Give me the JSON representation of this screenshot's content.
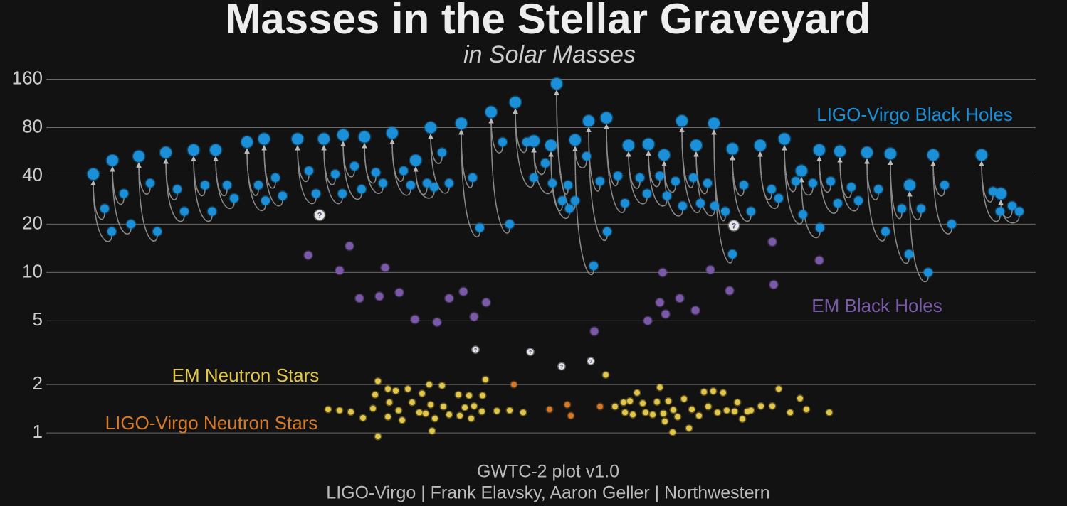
{
  "chart_data": {
    "type": "scatter",
    "title": "Masses in the Stellar Graveyard",
    "subtitle": "in Solar Masses",
    "footer": [
      "GWTC-2 plot v1.0",
      "LIGO-Virgo | Frank Elavsky, Aaron Geller | Northwestern"
    ],
    "log_scale": true,
    "grid": true,
    "xlim": [
      0,
      1400
    ],
    "ylim": [
      0.8,
      180
    ],
    "yticks": [
      1,
      2,
      5,
      10,
      20,
      40,
      80,
      160
    ],
    "series": [
      {
        "name": "LIGO-Virgo Black Holes",
        "color": "#1b8fd8",
        "x": [
          81,
          108,
          145,
          183,
          222,
          253,
          297,
          321,
          368,
          405,
          432,
          462,
          501,
          534,
          555,
          598,
          640,
          674,
          700,
          724,
          732,
          758,
          777,
          802,
          833,
          861,
          883,
          908,
          928,
          953,
          979,
          1018,
          1052,
          1076,
          1101,
          1130,
          1168,
          1201,
          1228,
          1261,
          1329,
          1356
        ],
        "values": [
          41,
          50,
          53,
          56,
          58,
          58,
          65,
          68,
          68,
          68,
          72,
          70,
          74,
          50,
          80,
          85,
          100,
          115,
          66,
          62,
          150,
          67,
          88,
          92,
          62,
          63,
          54,
          88,
          62,
          85,
          59,
          62,
          68,
          43,
          58,
          57,
          56,
          55,
          35,
          54,
          54,
          31
        ],
        "components": [
          [
            25,
            18
          ],
          [
            31,
            20
          ],
          [
            36,
            18
          ],
          [
            33,
            24
          ],
          [
            35,
            24
          ],
          [
            35,
            29
          ],
          [
            35,
            28
          ],
          [
            39,
            30
          ],
          [
            43,
            31
          ],
          [
            41,
            31
          ],
          [
            46,
            33
          ],
          [
            42,
            36
          ],
          [
            43,
            35
          ],
          [
            36,
            34
          ],
          [
            56,
            36
          ],
          [
            39,
            19
          ],
          [
            65,
            20
          ],
          [
            65,
            39
          ],
          [
            48,
            36
          ],
          [
            28,
            25
          ],
          [
            35,
            28
          ],
          [
            53,
            11
          ],
          [
            37,
            18
          ],
          [
            40,
            27
          ],
          [
            39,
            31
          ],
          [
            40,
            30
          ],
          [
            37,
            26
          ],
          [
            39,
            27
          ],
          [
            36,
            26
          ],
          [
            24,
            13
          ],
          [
            35,
            24
          ],
          [
            33,
            29
          ],
          [
            37,
            23
          ],
          [
            36,
            19
          ],
          [
            37,
            27
          ],
          [
            34,
            28
          ],
          [
            33,
            18
          ],
          [
            25,
            13
          ],
          [
            25,
            10
          ],
          [
            35,
            20
          ],
          [
            32,
            24
          ],
          [
            26,
            24
          ]
        ]
      },
      {
        "name": "EM Black Holes",
        "color": "#7a5aa8",
        "x": [
          383,
          427,
          441,
          455,
          483,
          491,
          511,
          533,
          564,
          581,
          601,
          616,
          633,
          785,
          860,
          877,
          885,
          881,
          905,
          927,
          948,
          975,
          1035,
          1037,
          1101
        ],
        "values": [
          12.8,
          10.3,
          14.6,
          6.9,
          7.1,
          10.7,
          7.5,
          5.1,
          4.9,
          6.9,
          7.6,
          5.3,
          6.5,
          4.3,
          5.0,
          6.5,
          5.5,
          10.0,
          6.9,
          5.8,
          10.4,
          7.7,
          15.5,
          8.4,
          11.9
        ]
      },
      {
        "name": "EM Neutron Stars",
        "color": "#e3c74a",
        "x": [
          411,
          427,
          443,
          460,
          474,
          477,
          481,
          481,
          495,
          497,
          495,
          506,
          510,
          515,
          523,
          529,
          539,
          543,
          548,
          553,
          555,
          557,
          561,
          571,
          573,
          581,
          594,
          596,
          603,
          609,
          612,
          616,
          627,
          628,
          632,
          648,
          666,
          685,
          801,
          814,
          826,
          828,
          835,
          839,
          845,
          853,
          857,
          867,
          873,
          877,
          882,
          884,
          889,
          895,
          896,
          902,
          911,
          918,
          922,
          932,
          939,
          945,
          952,
          958,
          966,
          971,
          982,
          986,
          993,
          1000,
          1005,
          1019,
          1035,
          1044,
          1060,
          1074,
          1083,
          1115
        ],
        "values": [
          1.4,
          1.38,
          1.35,
          1.24,
          1.42,
          1.73,
          2.1,
          0.95,
          1.88,
          1.55,
          1.26,
          1.83,
          1.38,
          1.2,
          1.88,
          1.55,
          1.34,
          1.76,
          1.32,
          2.0,
          1.5,
          1.03,
          1.23,
          1.97,
          1.46,
          1.3,
          1.73,
          1.28,
          1.44,
          1.71,
          1.23,
          1.47,
          1.36,
          1.71,
          2.15,
          1.37,
          1.38,
          1.34,
          2.3,
          1.46,
          1.55,
          1.34,
          1.58,
          1.3,
          1.78,
          1.53,
          1.34,
          1.3,
          1.56,
          1.92,
          1.32,
          1.18,
          1.58,
          1.01,
          1.39,
          1.26,
          1.63,
          1.07,
          1.4,
          1.28,
          1.8,
          1.46,
          1.82,
          1.34,
          1.78,
          1.38,
          1.36,
          1.55,
          1.22,
          1.36,
          1.38,
          1.47,
          1.47,
          1.88,
          1.34,
          1.64,
          1.4,
          1.34
        ]
      },
      {
        "name": "LIGO-Virgo Neutron Stars",
        "color": "#d77a28",
        "x": [
          672,
          722,
          747,
          752,
          793
        ],
        "values": [
          2.0,
          1.4,
          1.5,
          1.28,
          1.46
        ]
      }
    ],
    "uncertain": {
      "label": "?",
      "color": "#e8e8e8",
      "x": [
        399,
        981,
        618,
        695,
        739,
        780
      ],
      "values": [
        22.8,
        19.6,
        3.3,
        3.2,
        2.6,
        2.8
      ]
    }
  }
}
